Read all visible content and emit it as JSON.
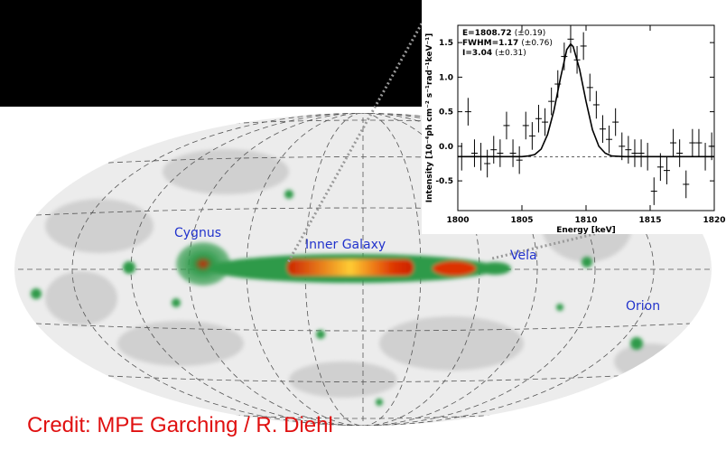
{
  "chart_data": {
    "type": "errorbar",
    "x_label": "Energy [keV]",
    "y_label": "Intensity [10⁻⁴ph cm⁻² s⁻¹rad⁻¹keV⁻¹]",
    "annotations": [
      {
        "label": "E=1808.72",
        "detail": "(±0.19)"
      },
      {
        "label": "FWHM=1.17",
        "detail": "(±0.76)"
      },
      {
        "label": "I=3.04",
        "detail": "(±0.31)"
      }
    ],
    "xlim": [
      1800,
      1820
    ],
    "xticks": [
      1800,
      1805,
      1810,
      1815,
      1820
    ],
    "ylim": [
      -0.93,
      1.75
    ],
    "yticks": [
      -0.5,
      {
        "value": 0,
        "label": "0.0"
      },
      0.5,
      {
        "value": 1,
        "label": "1.0"
      },
      1.5
    ],
    "baseline": -0.15,
    "color": "#000000",
    "points": {
      "x": [
        1800.3,
        1800.8,
        1801.3,
        1801.8,
        1802.3,
        1802.8,
        1803.3,
        1803.8,
        1804.3,
        1804.8,
        1805.3,
        1805.8,
        1806.3,
        1806.8,
        1807.3,
        1807.8,
        1808.3,
        1808.8,
        1809.3,
        1809.8,
        1810.3,
        1810.8,
        1811.3,
        1811.8,
        1812.3,
        1812.8,
        1813.3,
        1813.8,
        1814.3,
        1814.8,
        1815.3,
        1815.8,
        1816.3,
        1816.8,
        1817.3,
        1817.8,
        1818.3,
        1818.8,
        1819.3,
        1819.8
      ],
      "values": [
        -0.15,
        0.5,
        -0.1,
        -0.15,
        -0.25,
        -0.05,
        -0.1,
        0.3,
        -0.1,
        -0.2,
        0.3,
        0.15,
        0.4,
        0.35,
        0.65,
        0.9,
        1.3,
        1.55,
        1.25,
        1.45,
        0.85,
        0.6,
        0.25,
        0.1,
        0.35,
        0.0,
        -0.05,
        -0.1,
        -0.1,
        -0.15,
        -0.65,
        -0.3,
        -0.35,
        0.05,
        -0.1,
        -0.55,
        0.05,
        0.05,
        -0.15,
        0.0
      ],
      "errors": [
        0.2,
        0.2,
        0.2,
        0.2,
        0.2,
        0.2,
        0.2,
        0.2,
        0.2,
        0.2,
        0.2,
        0.2,
        0.2,
        0.2,
        0.2,
        0.2,
        0.2,
        0.2,
        0.2,
        0.2,
        0.2,
        0.2,
        0.2,
        0.2,
        0.2,
        0.2,
        0.2,
        0.2,
        0.2,
        0.2,
        0.2,
        0.2,
        0.2,
        0.2,
        0.2,
        0.2,
        0.2,
        0.2,
        0.2,
        0.2
      ]
    },
    "fit": {
      "x": [
        1800,
        1803,
        1805,
        1805.5,
        1806,
        1806.5,
        1807,
        1807.5,
        1808,
        1808.5,
        1808.8,
        1809,
        1809.5,
        1810,
        1810.5,
        1811,
        1811.5,
        1812,
        1813,
        1815,
        1820
      ],
      "values": [
        -0.15,
        -0.15,
        -0.15,
        -0.14,
        -0.12,
        -0.04,
        0.17,
        0.52,
        0.98,
        1.4,
        1.48,
        1.44,
        1.11,
        0.65,
        0.24,
        0.0,
        -0.1,
        -0.14,
        -0.15,
        -0.15,
        -0.15
      ]
    }
  },
  "map": {
    "labels": [
      "Cygnus",
      "Inner Galaxy",
      "Vela",
      "Orion"
    ]
  },
  "credit": "Credit: MPE Garching / R. Diehl"
}
